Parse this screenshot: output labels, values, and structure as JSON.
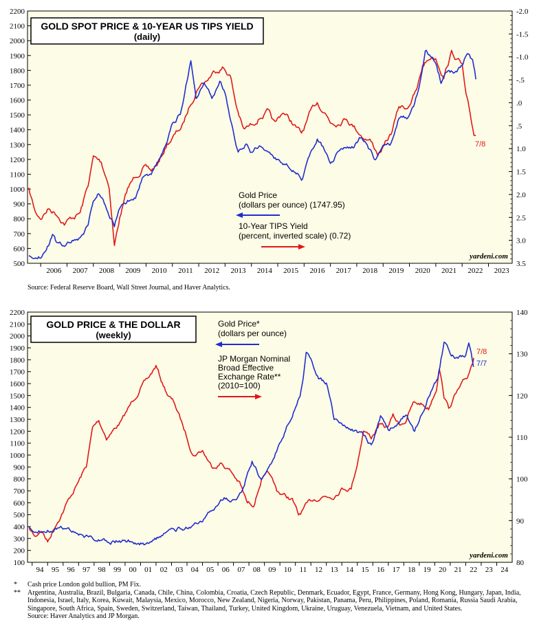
{
  "colors": {
    "panel_bg": "#fdfce6",
    "gold_line": "#1f2ccf",
    "red_line": "#e01818"
  },
  "chart_data": [
    {
      "type": "line",
      "title": "GOLD SPOT PRICE & 10-YEAR US TIPS YIELD",
      "subtitle": "(daily)",
      "left_axis": {
        "label": "Gold Price (dollars per ounce)",
        "ylim": [
          500,
          2200
        ],
        "ticks": [
          500,
          600,
          700,
          800,
          900,
          1000,
          1100,
          1200,
          1300,
          1400,
          1500,
          1600,
          1700,
          1800,
          1900,
          2000,
          2100,
          2200
        ]
      },
      "right_axis": {
        "label": "10-Year TIPS Yield (percent, inverted scale)",
        "ylim": [
          3.5,
          -2.0
        ],
        "ticks": [
          "3.5",
          "3.0",
          "2.5",
          "2.0",
          "1.5",
          "1.0",
          ".5",
          ".0",
          "-.5",
          "-1.0",
          "-1.5",
          "-2.0"
        ],
        "tick_values": [
          3.5,
          3.0,
          2.5,
          2.0,
          1.5,
          1.0,
          0.5,
          0.0,
          -0.5,
          -1.0,
          -1.5,
          -2.0
        ]
      },
      "xlim": [
        2005.5,
        2023.9
      ],
      "x_ticks": [
        "2006",
        "2007",
        "2008",
        "2009",
        "2010",
        "2011",
        "2012",
        "2013",
        "2014",
        "2015",
        "2016",
        "2017",
        "2018",
        "2019",
        "2020",
        "2021",
        "2022",
        "2023"
      ],
      "legend": [
        {
          "label_line1": "Gold Price",
          "label_line2": "(dollars per ounce) (1747.95)",
          "arrow": "left"
        },
        {
          "label_line1": "10-Year TIPS Yield",
          "label_line2": "(percent, inverted scale) (0.72)",
          "arrow": "right"
        }
      ],
      "annotation": "7/8",
      "watermark": "yardeni.com",
      "series": [
        {
          "name": "Gold Price",
          "axis": "left",
          "x": [
            2005.55,
            2005.8,
            2006.0,
            2006.3,
            2006.45,
            2006.6,
            2006.9,
            2007.2,
            2007.5,
            2007.8,
            2008.0,
            2008.2,
            2008.5,
            2008.8,
            2009.0,
            2009.3,
            2009.6,
            2009.9,
            2010.2,
            2010.5,
            2010.8,
            2011.0,
            2011.3,
            2011.6,
            2011.7,
            2011.9,
            2012.2,
            2012.5,
            2012.8,
            2013.0,
            2013.3,
            2013.5,
            2013.8,
            2014.0,
            2014.3,
            2014.6,
            2014.9,
            2015.2,
            2015.5,
            2015.9,
            2016.2,
            2016.5,
            2016.8,
            2017.0,
            2017.3,
            2017.6,
            2017.9,
            2018.1,
            2018.4,
            2018.7,
            2019.0,
            2019.3,
            2019.6,
            2019.9,
            2020.2,
            2020.4,
            2020.6,
            2020.8,
            2021.0,
            2021.2,
            2021.5,
            2021.8,
            2022.0,
            2022.2,
            2022.4,
            2022.52
          ],
          "values": [
            540,
            560,
            560,
            640,
            720,
            640,
            620,
            660,
            680,
            760,
            930,
            980,
            880,
            760,
            880,
            920,
            960,
            1100,
            1110,
            1200,
            1300,
            1420,
            1500,
            1780,
            1880,
            1600,
            1700,
            1600,
            1720,
            1650,
            1400,
            1250,
            1300,
            1250,
            1300,
            1250,
            1200,
            1180,
            1150,
            1080,
            1200,
            1340,
            1260,
            1150,
            1250,
            1280,
            1280,
            1330,
            1300,
            1200,
            1280,
            1300,
            1480,
            1470,
            1580,
            1720,
            1950,
            1900,
            1850,
            1720,
            1800,
            1780,
            1820,
            1920,
            1850,
            1740
          ]
        },
        {
          "name": "10-Year TIPS Yield",
          "axis": "right",
          "x": [
            2005.55,
            2005.8,
            2006.0,
            2006.3,
            2006.6,
            2006.9,
            2007.2,
            2007.5,
            2007.8,
            2008.0,
            2008.3,
            2008.6,
            2008.8,
            2009.0,
            2009.3,
            2009.6,
            2009.9,
            2010.2,
            2010.5,
            2010.8,
            2011.1,
            2011.4,
            2011.7,
            2012.0,
            2012.3,
            2012.6,
            2012.9,
            2013.2,
            2013.4,
            2013.7,
            2014.0,
            2014.3,
            2014.6,
            2014.9,
            2015.2,
            2015.5,
            2015.9,
            2016.2,
            2016.5,
            2016.8,
            2017.0,
            2017.3,
            2017.6,
            2017.9,
            2018.2,
            2018.5,
            2018.8,
            2019.0,
            2019.3,
            2019.6,
            2019.9,
            2020.1,
            2020.3,
            2020.5,
            2020.8,
            2021.0,
            2021.3,
            2021.6,
            2021.9,
            2022.0,
            2022.15,
            2022.3,
            2022.45,
            2022.52
          ],
          "values": [
            1.9,
            2.4,
            2.5,
            2.3,
            2.4,
            2.6,
            2.5,
            2.4,
            1.8,
            1.2,
            1.3,
            1.8,
            3.1,
            2.5,
            1.9,
            1.6,
            1.4,
            1.5,
            1.3,
            0.9,
            0.7,
            0.5,
            0.0,
            -0.4,
            -0.5,
            -0.7,
            -0.8,
            -0.6,
            0.0,
            0.6,
            0.5,
            0.3,
            0.2,
            0.5,
            0.2,
            0.4,
            0.7,
            0.3,
            0.0,
            0.2,
            0.4,
            0.4,
            0.3,
            0.5,
            0.7,
            0.8,
            1.1,
            1.0,
            0.7,
            0.1,
            0.1,
            -0.1,
            -0.3,
            -0.8,
            -1.0,
            -1.0,
            -0.6,
            -1.1,
            -0.9,
            -0.8,
            -0.1,
            0.3,
            0.7,
            0.72
          ]
        }
      ]
    },
    {
      "type": "line",
      "title": "GOLD PRICE & THE DOLLAR",
      "subtitle": "(weekly)",
      "left_axis": {
        "label": "Gold Price* (dollars per ounce)",
        "ylim": [
          100,
          2200
        ],
        "ticks": [
          100,
          200,
          300,
          400,
          500,
          600,
          700,
          800,
          900,
          1000,
          1100,
          1200,
          1300,
          1400,
          1500,
          1600,
          1700,
          1800,
          1900,
          2000,
          2100,
          2200
        ]
      },
      "right_axis": {
        "label": "JP Morgan Nominal Broad Effective Exchange Rate** (2010=100)",
        "ylim": [
          80,
          140
        ],
        "ticks": [
          80,
          90,
          100,
          110,
          120,
          130,
          140
        ]
      },
      "xlim": [
        1993.7,
        2025.0
      ],
      "x_ticks": [
        "94",
        "95",
        "96",
        "97",
        "98",
        "99",
        "00",
        "01",
        "02",
        "03",
        "04",
        "05",
        "06",
        "07",
        "08",
        "09",
        "10",
        "11",
        "12",
        "13",
        "14",
        "15",
        "16",
        "17",
        "18",
        "19",
        "20",
        "21",
        "22",
        "23",
        "24"
      ],
      "legend": [
        {
          "label_line1": "Gold Price*",
          "label_line2": "(dollars per ounce)",
          "arrow": "left"
        },
        {
          "label_line1": "JP Morgan Nominal",
          "label_line2": "Broad Effective",
          "label_line3": "Exchange Rate**",
          "label_line4": "(2010=100)",
          "arrow": "right"
        }
      ],
      "annotations": [
        "7/8",
        "7/7"
      ],
      "watermark": "yardeni.com",
      "series": [
        {
          "name": "Gold Price",
          "axis": "left",
          "x": [
            1993.8,
            1994.5,
            1995.5,
            1996.2,
            1997.0,
            1998.0,
            1999.0,
            1999.7,
            2000.5,
            2001.3,
            2002.0,
            2003.0,
            2004.0,
            2005.0,
            2005.8,
            2006.4,
            2006.9,
            2007.5,
            2008.2,
            2008.8,
            2009.5,
            2010.0,
            2010.8,
            2011.3,
            2011.7,
            2012.5,
            2013.0,
            2013.5,
            2014.0,
            2014.8,
            2015.5,
            2015.9,
            2016.5,
            2017.0,
            2017.6,
            2018.2,
            2018.7,
            2019.0,
            2019.6,
            2020.2,
            2020.6,
            2021.0,
            2021.5,
            2022.0,
            2022.2,
            2022.5
          ],
          "values": [
            380,
            385,
            385,
            390,
            350,
            300,
            285,
            280,
            285,
            265,
            300,
            350,
            400,
            430,
            550,
            640,
            620,
            680,
            950,
            800,
            930,
            1100,
            1350,
            1500,
            1850,
            1650,
            1600,
            1300,
            1250,
            1200,
            1150,
            1080,
            1320,
            1200,
            1260,
            1330,
            1200,
            1300,
            1500,
            1650,
            1950,
            1850,
            1800,
            1820,
            1950,
            1740
          ]
        },
        {
          "name": "JP Morgan Nominal Broad Effective Exchange Rate",
          "axis": "right",
          "x": [
            1993.8,
            1994.2,
            1994.6,
            1995.0,
            1995.5,
            1996.2,
            1996.8,
            1997.5,
            1997.9,
            1998.3,
            1998.8,
            1999.3,
            1999.8,
            2000.4,
            2001.0,
            2001.5,
            2002.0,
            2002.4,
            2002.8,
            2003.2,
            2003.8,
            2004.4,
            2005.0,
            2005.6,
            2006.2,
            2006.8,
            2007.4,
            2007.9,
            2008.3,
            2008.8,
            2009.3,
            2009.8,
            2010.3,
            2010.8,
            2011.2,
            2011.6,
            2012.2,
            2012.8,
            2013.4,
            2014.0,
            2014.6,
            2015.0,
            2015.4,
            2015.9,
            2016.4,
            2016.9,
            2017.3,
            2017.7,
            2018.1,
            2018.6,
            2019.1,
            2019.6,
            2020.1,
            2020.3,
            2020.6,
            2020.9,
            2021.3,
            2021.7,
            2022.1,
            2022.52
          ],
          "values": [
            88,
            86,
            88,
            85,
            89,
            94,
            98,
            103,
            112,
            114,
            110,
            112,
            114,
            118,
            122,
            124,
            127,
            123,
            120,
            118,
            112,
            106,
            107,
            103,
            104,
            102,
            99,
            94,
            94,
            100,
            101,
            97,
            96,
            95,
            91,
            93,
            95,
            96,
            96,
            98,
            98,
            104,
            112,
            110,
            113,
            112,
            115,
            113,
            114,
            118,
            118,
            117,
            122,
            127,
            120,
            117,
            120,
            122,
            124,
            129
          ]
        }
      ]
    }
  ],
  "chart1_source": "Source: Federal Reserve Board, Wall Street Journal, and Haver Analytics.",
  "footnotes": {
    "note1_marker": "*",
    "note1": "Cash price London gold bullion, PM Fix.",
    "note2_marker": "**",
    "note2": "Argentina, Australia, Brazil, Bulgaria, Canada, Chile, China, Colombia, Croatia, Czech Republic, Denmark, Ecuador, Egypt, France, Germany, Hong Kong, Hungary, Japan, India, Indonesia, Israel, Italy, Korea, Kuwait, Malaysia, Mexico, Morocco, New Zealand, Nigeria, Norway, Pakistan, Panama, Peru, Philippines, Poland, Romania, Russia Saudi Arabia, Singapore, South Africa, Spain, Sweden, Switzerland, Taiwan, Thailand, Turkey, United Kingdom, Ukraine, Uruguay, Venezuela, Vietnam, and United States.",
    "source": "Source: Haver Analytics and JP Morgan."
  }
}
